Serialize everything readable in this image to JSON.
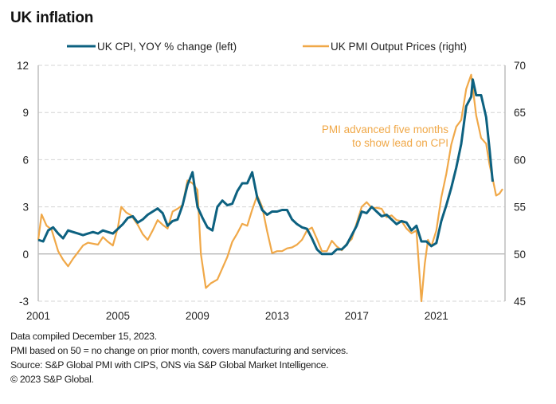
{
  "title": "UK inflation",
  "notes": [
    "Data compiled December 15, 2023.",
    "PMI based on 50 = no change on prior month, covers manufacturing and services.",
    "Source: S&P Global PMI with CIPS, ONS via S&P Global Market Intelligence.",
    "© 2023 S&P Global."
  ],
  "chart_data": {
    "type": "line",
    "title": "UK inflation",
    "xlabel": "",
    "ylabel_left": "",
    "ylabel_right": "",
    "x_ticks": [
      "2001",
      "2005",
      "2009",
      "2013",
      "2017",
      "2021"
    ],
    "x_range": [
      2001.0,
      2024.45
    ],
    "y_left": {
      "range": [
        -3,
        12
      ],
      "ticks": [
        "12",
        "9",
        "6",
        "3",
        "0",
        "-3"
      ],
      "tick_values": [
        12,
        9,
        6,
        3,
        0,
        -3
      ]
    },
    "y_right": {
      "range": [
        45,
        70
      ],
      "ticks": [
        "70",
        "65",
        "60",
        "55",
        "50",
        "45"
      ],
      "tick_values": [
        70,
        65,
        60,
        55,
        50,
        45
      ]
    },
    "grid": "horizontal dashed",
    "legend_position": "top",
    "annotation": {
      "lines": [
        "PMI advanced five months",
        "to show lead on CPI"
      ],
      "color": "#F0A848"
    },
    "series": [
      {
        "name": "UK CPI, YOY % change (left)",
        "axis": "left",
        "color": "#0D6180",
        "x": [
          2001.0,
          2001.25,
          2001.5,
          2001.75,
          2002.0,
          2002.25,
          2002.5,
          2002.75,
          2003.0,
          2003.25,
          2003.5,
          2003.75,
          2004.0,
          2004.25,
          2004.5,
          2004.75,
          2005.0,
          2005.25,
          2005.5,
          2005.75,
          2006.0,
          2006.25,
          2006.5,
          2006.75,
          2007.0,
          2007.25,
          2007.5,
          2007.75,
          2008.0,
          2008.25,
          2008.5,
          2008.75,
          2009.0,
          2009.25,
          2009.5,
          2009.75,
          2010.0,
          2010.25,
          2010.5,
          2010.75,
          2011.0,
          2011.25,
          2011.5,
          2011.75,
          2012.0,
          2012.25,
          2012.5,
          2012.75,
          2013.0,
          2013.25,
          2013.5,
          2013.75,
          2014.0,
          2014.25,
          2014.5,
          2014.75,
          2015.0,
          2015.25,
          2015.5,
          2015.75,
          2016.0,
          2016.25,
          2016.5,
          2016.75,
          2017.0,
          2017.25,
          2017.5,
          2017.75,
          2018.0,
          2018.25,
          2018.5,
          2018.75,
          2019.0,
          2019.25,
          2019.5,
          2019.75,
          2020.0,
          2020.25,
          2020.5,
          2020.75,
          2021.0,
          2021.25,
          2021.5,
          2021.75,
          2022.0,
          2022.25,
          2022.5,
          2022.75,
          2022.83,
          2023.0,
          2023.25,
          2023.5,
          2023.67,
          2023.83
        ],
        "values": [
          0.9,
          0.8,
          1.5,
          1.7,
          1.3,
          1.0,
          1.5,
          1.4,
          1.3,
          1.2,
          1.3,
          1.4,
          1.3,
          1.5,
          1.4,
          1.3,
          1.6,
          1.9,
          2.3,
          2.4,
          2.0,
          2.2,
          2.5,
          2.7,
          2.9,
          2.6,
          1.8,
          2.1,
          2.2,
          3.1,
          4.4,
          5.2,
          3.0,
          2.3,
          1.7,
          1.5,
          3.0,
          3.4,
          3.1,
          3.2,
          4.0,
          4.5,
          4.5,
          5.2,
          3.6,
          2.8,
          2.5,
          2.7,
          2.7,
          2.8,
          2.8,
          2.2,
          1.9,
          1.7,
          1.6,
          1.0,
          0.3,
          0.0,
          0.0,
          0.0,
          0.3,
          0.3,
          0.6,
          1.2,
          1.8,
          2.7,
          2.6,
          3.0,
          2.7,
          2.4,
          2.5,
          2.2,
          1.9,
          2.1,
          2.0,
          1.5,
          1.8,
          0.8,
          0.8,
          0.5,
          0.7,
          2.1,
          3.1,
          4.2,
          5.5,
          7.0,
          9.4,
          10.0,
          11.1,
          10.1,
          10.1,
          8.7,
          6.7,
          4.6
        ]
      },
      {
        "name": "UK PMI Output Prices (right)",
        "axis": "right",
        "color": "#F0A848",
        "x": [
          2001.0,
          2001.17,
          2001.42,
          2001.67,
          2002.0,
          2002.25,
          2002.5,
          2002.75,
          2003.0,
          2003.25,
          2003.5,
          2003.75,
          2004.0,
          2004.25,
          2004.5,
          2004.75,
          2005.0,
          2005.17,
          2005.42,
          2005.67,
          2006.0,
          2006.25,
          2006.5,
          2006.75,
          2007.0,
          2007.25,
          2007.5,
          2007.75,
          2008.0,
          2008.25,
          2008.5,
          2008.75,
          2009.0,
          2009.17,
          2009.42,
          2009.67,
          2010.0,
          2010.25,
          2010.5,
          2010.75,
          2011.0,
          2011.25,
          2011.5,
          2011.75,
          2012.0,
          2012.25,
          2012.5,
          2012.75,
          2013.0,
          2013.25,
          2013.5,
          2013.75,
          2014.0,
          2014.25,
          2014.5,
          2014.75,
          2015.0,
          2015.25,
          2015.5,
          2015.75,
          2016.0,
          2016.25,
          2016.5,
          2016.75,
          2017.0,
          2017.25,
          2017.5,
          2017.75,
          2018.0,
          2018.25,
          2018.5,
          2018.75,
          2019.0,
          2019.25,
          2019.5,
          2019.75,
          2020.0,
          2020.25,
          2020.42,
          2020.58,
          2020.75,
          2021.0,
          2021.25,
          2021.5,
          2021.75,
          2022.0,
          2022.25,
          2022.5,
          2022.75,
          2023.0,
          2023.25,
          2023.5,
          2023.67,
          2023.83,
          2024.0,
          2024.17,
          2024.33
        ],
        "values": [
          51.5,
          54.2,
          53.0,
          52.6,
          50.3,
          49.4,
          48.7,
          49.5,
          50.2,
          50.9,
          51.2,
          51.1,
          51.0,
          51.8,
          51.3,
          50.9,
          52.8,
          55.0,
          54.4,
          54.1,
          53.1,
          52.1,
          51.5,
          52.5,
          53.6,
          53.1,
          52.7,
          54.5,
          54.8,
          55.2,
          57.8,
          57.5,
          56.8,
          50.0,
          46.4,
          46.9,
          47.3,
          48.5,
          49.7,
          51.3,
          52.2,
          53.2,
          53.0,
          54.7,
          56.2,
          55.0,
          52.4,
          50.1,
          50.3,
          50.3,
          50.6,
          50.7,
          51.0,
          51.5,
          52.5,
          52.8,
          51.6,
          50.3,
          50.3,
          51.4,
          50.8,
          50.4,
          51.1,
          51.6,
          53.3,
          55.0,
          55.5,
          54.9,
          54.9,
          54.8,
          53.9,
          54.1,
          53.6,
          53.5,
          52.7,
          52.2,
          52.5,
          45.0,
          49.0,
          51.5,
          50.8,
          52.5,
          56.0,
          58.5,
          61.6,
          63.5,
          64.2,
          67.5,
          69.0,
          64.7,
          62.3,
          61.7,
          59.5,
          58.0,
          56.2,
          56.4,
          56.9
        ]
      }
    ]
  }
}
